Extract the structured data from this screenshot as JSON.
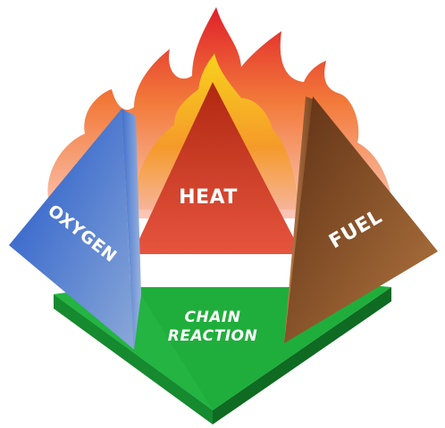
{
  "diagram": {
    "labels": {
      "heat": "HEAT",
      "oxygen": "OXYGEN",
      "fuel": "FUEL",
      "chain_line1": "CHAIN",
      "chain_line2": "REACTION"
    },
    "colors": {
      "flame_outer": "#e0202a",
      "flame_mid": "#f58a2a",
      "flame_inner": "#f8d21c",
      "heat_face_top": "#b82a10",
      "heat_face_bottom": "#e8503a",
      "oxygen_face_top": "#2a5fcf",
      "oxygen_face_bottom": "#7fa0d6",
      "fuel_face_top": "#6b3a18",
      "fuel_face_bottom": "#b0733c",
      "base_green": "#1fae3c",
      "base_green_dark": "#178a2e",
      "base_edge": "#0f6a22"
    }
  }
}
